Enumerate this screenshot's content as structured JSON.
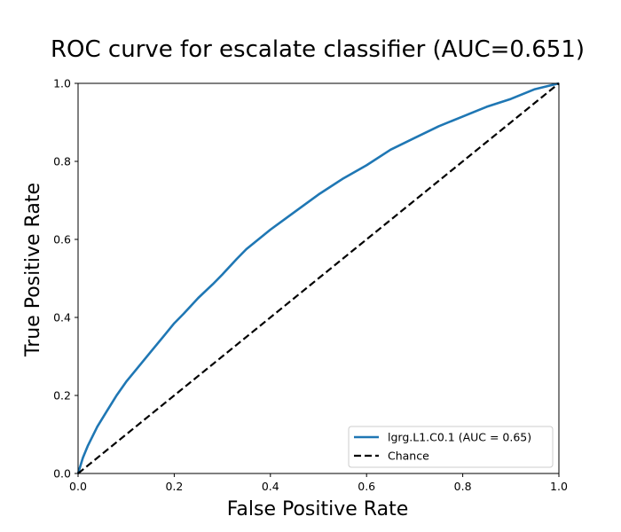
{
  "chart_data": {
    "type": "line",
    "title": "ROC curve for escalate classifier (AUC=0.651)",
    "xlabel": "False Positive Rate",
    "ylabel": "True Positive Rate",
    "xlim": [
      0,
      1
    ],
    "ylim": [
      0,
      1
    ],
    "xticks": [
      0.0,
      0.2,
      0.4,
      0.6,
      0.8,
      1.0
    ],
    "yticks": [
      0.0,
      0.2,
      0.4,
      0.6,
      0.8,
      1.0
    ],
    "xtick_labels": [
      "0.0",
      "0.2",
      "0.4",
      "0.6",
      "0.8",
      "1.0"
    ],
    "ytick_labels": [
      "0.0",
      "0.2",
      "0.4",
      "0.6",
      "0.8",
      "1.0"
    ],
    "grid": false,
    "legend_position": "lower-right",
    "series": [
      {
        "name": "lgrg.L1.C0.1 (AUC = 0.65)",
        "color": "#1f77b4",
        "style": "solid",
        "x": [
          0.0,
          0.01,
          0.02,
          0.04,
          0.06,
          0.08,
          0.1,
          0.12,
          0.15,
          0.18,
          0.2,
          0.22,
          0.25,
          0.28,
          0.3,
          0.33,
          0.35,
          0.4,
          0.45,
          0.5,
          0.55,
          0.6,
          0.65,
          0.7,
          0.75,
          0.8,
          0.85,
          0.9,
          0.95,
          1.0
        ],
        "y": [
          0.0,
          0.04,
          0.07,
          0.12,
          0.16,
          0.2,
          0.235,
          0.265,
          0.31,
          0.355,
          0.385,
          0.41,
          0.45,
          0.485,
          0.51,
          0.55,
          0.575,
          0.625,
          0.67,
          0.715,
          0.755,
          0.79,
          0.83,
          0.86,
          0.89,
          0.915,
          0.94,
          0.96,
          0.985,
          1.0
        ]
      },
      {
        "name": "Chance",
        "color": "#000000",
        "style": "dashed",
        "x": [
          0.0,
          1.0
        ],
        "y": [
          0.0,
          1.0
        ]
      }
    ]
  }
}
